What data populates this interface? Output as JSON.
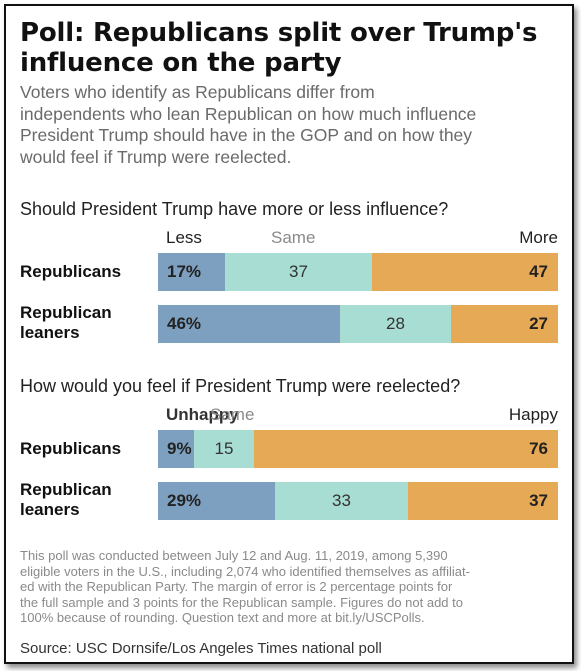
{
  "header": {
    "title_line1": "Poll: Republicans split over Trump's",
    "title_line2": "influence on the party",
    "subtitle_line1": "Voters who identify as Republicans differ from",
    "subtitle_line2": "independents who lean Republican on how much influence",
    "subtitle_line3": "President Trump should have in the GOP and on how they",
    "subtitle_line4": "would feel if Trump were reelected."
  },
  "chart_data": [
    {
      "type": "bar",
      "stacked": true,
      "orientation": "horizontal",
      "title": "Should President Trump have more or less influence?",
      "legend": [
        "Less",
        "Same",
        "More"
      ],
      "categories": [
        "Republicans",
        "Republican leaners"
      ],
      "category_lines": [
        [
          "Republicans"
        ],
        [
          "Republican",
          "leaners"
        ]
      ],
      "series": [
        {
          "name": "Less",
          "values": [
            17,
            46
          ],
          "labels": [
            "17%",
            "46%"
          ],
          "color": "#7ea0c0"
        },
        {
          "name": "Same",
          "values": [
            37,
            28
          ],
          "labels": [
            "37",
            "28"
          ],
          "color": "#a8ddd3"
        },
        {
          "name": "More",
          "values": [
            47,
            27
          ],
          "labels": [
            "47",
            "27"
          ],
          "color": "#e6a956"
        }
      ]
    },
    {
      "type": "bar",
      "stacked": true,
      "orientation": "horizontal",
      "title": "How would you feel if President Trump were reelected?",
      "legend": [
        "Unhappy",
        "Same",
        "Happy"
      ],
      "categories": [
        "Republicans",
        "Republican leaners"
      ],
      "category_lines": [
        [
          "Republicans"
        ],
        [
          "Republican",
          "leaners"
        ]
      ],
      "series": [
        {
          "name": "Unhappy",
          "values": [
            9,
            29
          ],
          "labels": [
            "9%",
            "29%"
          ],
          "color": "#7ea0c0"
        },
        {
          "name": "Same",
          "values": [
            15,
            33
          ],
          "labels": [
            "15",
            "33"
          ],
          "color": "#a8ddd3"
        },
        {
          "name": "Happy",
          "values": [
            76,
            37
          ],
          "labels": [
            "76",
            "37"
          ],
          "color": "#e6a956"
        }
      ]
    }
  ],
  "footnote": {
    "lines": [
      "This poll was conducted between July 12 and Aug. 11, 2019, among 5,390",
      "eligible voters in the U.S., including 2,074 who identified themselves as affiliat-",
      "ed with the Republican Party. The margin of error is 2 percentage points for",
      "the full sample and 3 points for the Republican sample. Figures do not add to",
      "100% because of rounding. Question text and more at bit.ly/USCPolls."
    ]
  },
  "source": "Source: USC Dornsife/Los Angeles Times national poll"
}
